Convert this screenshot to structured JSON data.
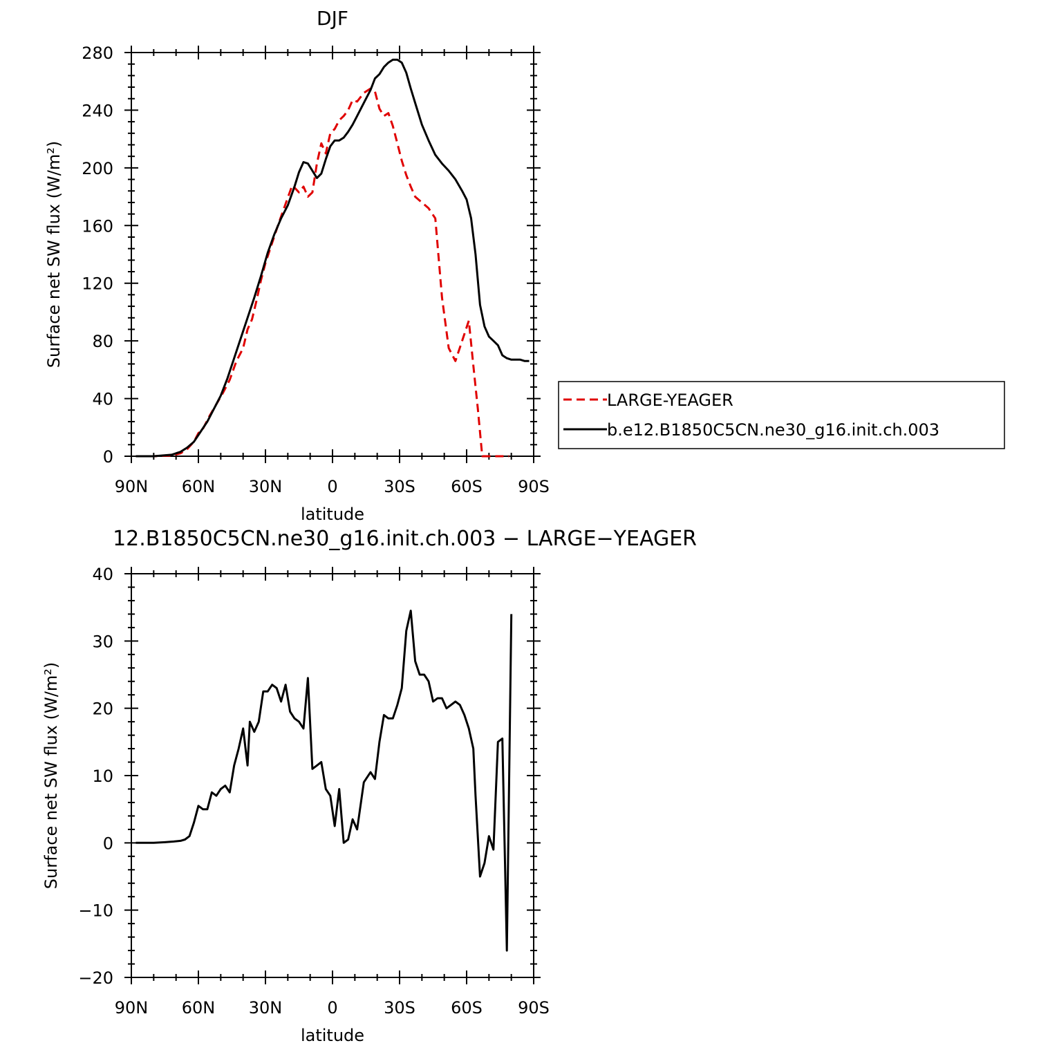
{
  "colors": {
    "obs": "#e00000",
    "model": "#000000"
  },
  "chart_data": [
    {
      "type": "line",
      "title": "DJF",
      "xlabel": "latitude",
      "ylabel": "Surface net SW flux (W/m²)",
      "xlim": [
        -90,
        90
      ],
      "ylim": [
        0,
        280
      ],
      "xticks": [
        {
          "v": -90,
          "label": "90N"
        },
        {
          "v": -60,
          "label": "60N"
        },
        {
          "v": -30,
          "label": "30N"
        },
        {
          "v": 0,
          "label": "0"
        },
        {
          "v": 30,
          "label": "30S"
        },
        {
          "v": 60,
          "label": "60S"
        },
        {
          "v": 90,
          "label": "90S"
        }
      ],
      "yticks": [
        {
          "v": 0,
          "label": "0"
        },
        {
          "v": 40,
          "label": "40"
        },
        {
          "v": 80,
          "label": "80"
        },
        {
          "v": 120,
          "label": "120"
        },
        {
          "v": 160,
          "label": "160"
        },
        {
          "v": 200,
          "label": "200"
        },
        {
          "v": 240,
          "label": "240"
        },
        {
          "v": 280,
          "label": "280"
        }
      ],
      "legend_position": "right",
      "series": [
        {
          "name": "LARGE-YEAGER",
          "style": "dashed",
          "x": [
            -88,
            -80,
            -72,
            -68,
            -65,
            -62,
            -60,
            -58,
            -55,
            -52,
            -49,
            -46,
            -43,
            -40,
            -38,
            -36,
            -34,
            -32,
            -30,
            -27,
            -24,
            -21,
            -18,
            -15,
            -13,
            -11,
            -9,
            -7,
            -5,
            -3,
            -1,
            1,
            3,
            5,
            7,
            9,
            11,
            14,
            17,
            19,
            21,
            23,
            25,
            27,
            29,
            31,
            33,
            35,
            37,
            40,
            43,
            46,
            49,
            52,
            55,
            58,
            61,
            63,
            65,
            67,
            69,
            71,
            73,
            75,
            77,
            78,
            79
          ],
          "y": [
            0,
            0,
            0.5,
            2,
            5,
            10,
            16,
            19,
            28,
            36,
            44,
            53,
            66,
            75,
            88,
            95,
            108,
            122,
            134,
            148,
            162,
            175,
            188,
            183,
            187,
            180,
            183,
            203,
            217,
            210,
            224,
            227,
            233,
            236,
            240,
            247,
            246,
            252,
            255,
            253,
            241,
            236,
            238,
            229,
            217,
            205,
            195,
            187,
            180,
            176,
            172,
            165,
            110,
            75,
            66,
            80,
            94,
            63,
            33,
            0,
            0,
            0,
            0,
            0,
            0,
            0,
            0
          ]
        },
        {
          "name": "b.e12.B1850C5CN.ne30_g16.init.ch.003",
          "style": "solid",
          "x": [
            -88,
            -80,
            -72,
            -68,
            -65,
            -62,
            -59,
            -56,
            -53,
            -50,
            -47,
            -44,
            -41,
            -38,
            -35,
            -32,
            -29,
            -26,
            -23,
            -20,
            -17,
            -15,
            -13,
            -11,
            -9,
            -7,
            -5,
            -3,
            -1,
            1,
            3,
            5,
            7,
            9,
            11,
            13,
            15,
            17,
            19,
            21,
            23,
            25,
            27,
            29,
            31,
            33,
            35,
            37,
            40,
            43,
            46,
            49,
            52,
            55,
            58,
            60,
            62,
            64,
            66,
            68,
            70,
            72,
            74,
            76,
            78,
            80,
            82,
            84,
            86,
            88
          ],
          "y": [
            0,
            0,
            1,
            3,
            6,
            10,
            17,
            24,
            33,
            42,
            54,
            68,
            82,
            96,
            110,
            125,
            141,
            154,
            165,
            174,
            187,
            197,
            204,
            203,
            198,
            193,
            196,
            206,
            215,
            219,
            219,
            221,
            225,
            230,
            236,
            242,
            248,
            254,
            262,
            265,
            270,
            273,
            275,
            275,
            273,
            266,
            255,
            245,
            230,
            219,
            209,
            203,
            198,
            192,
            184,
            178,
            165,
            140,
            105,
            90,
            83,
            80,
            77,
            70,
            68,
            67,
            67,
            67,
            66,
            66
          ]
        }
      ]
    },
    {
      "type": "line",
      "title": "12.B1850C5CN.ne30_g16.init.ch.003 − LARGE−YEAGER",
      "xlabel": "latitude",
      "ylabel": "Surface net SW flux (W/m²)",
      "xlim": [
        -90,
        90
      ],
      "ylim": [
        -20,
        40
      ],
      "xticks": [
        {
          "v": -90,
          "label": "90N"
        },
        {
          "v": -60,
          "label": "60N"
        },
        {
          "v": -30,
          "label": "30N"
        },
        {
          "v": 0,
          "label": "0"
        },
        {
          "v": 30,
          "label": "30S"
        },
        {
          "v": 60,
          "label": "60S"
        },
        {
          "v": 90,
          "label": "90S"
        }
      ],
      "yticks": [
        {
          "v": -20,
          "label": "−20"
        },
        {
          "v": -10,
          "label": "−10"
        },
        {
          "v": 0,
          "label": "0"
        },
        {
          "v": 10,
          "label": "10"
        },
        {
          "v": 20,
          "label": "20"
        },
        {
          "v": 30,
          "label": "30"
        },
        {
          "v": 40,
          "label": "40"
        }
      ],
      "series": [
        {
          "style": "solid",
          "x": [
            -88,
            -80,
            -75,
            -71,
            -68,
            -66,
            -64,
            -62,
            -60,
            -58,
            -56,
            -54,
            -52,
            -50,
            -48,
            -46,
            -44,
            -42,
            -40,
            -38,
            -37,
            -35,
            -33,
            -31,
            -29,
            -27,
            -25,
            -23,
            -21,
            -19,
            -17,
            -15,
            -13,
            -11,
            -9,
            -7,
            -5,
            -3,
            -1,
            1,
            3,
            5,
            7,
            9,
            11,
            14,
            17,
            19,
            21,
            23,
            25,
            27,
            29,
            31,
            33,
            35,
            37,
            39,
            41,
            43,
            45,
            47,
            49,
            51,
            53,
            55,
            57,
            59,
            61,
            63,
            64,
            66,
            68,
            70,
            72,
            74,
            76,
            78,
            80
          ],
          "y": [
            0,
            0,
            0.1,
            0.2,
            0.3,
            0.5,
            1,
            3,
            5.5,
            5,
            5,
            7.5,
            7,
            8,
            8.5,
            7.5,
            11.5,
            14,
            17,
            11.5,
            18,
            16.5,
            18,
            22.5,
            22.5,
            23.5,
            23,
            21,
            23.5,
            19.5,
            18.5,
            18,
            17,
            24.5,
            11,
            11.5,
            12,
            8,
            7,
            2.5,
            8,
            0,
            0.5,
            3.5,
            2,
            9,
            10.5,
            9.5,
            15,
            19,
            18.5,
            18.5,
            20.5,
            23,
            31.5,
            34.5,
            27,
            25,
            25,
            24,
            21,
            21.5,
            21.5,
            20,
            20.5,
            21,
            20.5,
            19,
            17,
            14,
            7,
            -5,
            -3,
            1,
            -1,
            15,
            15.5,
            -16,
            34
          ]
        }
      ]
    }
  ]
}
